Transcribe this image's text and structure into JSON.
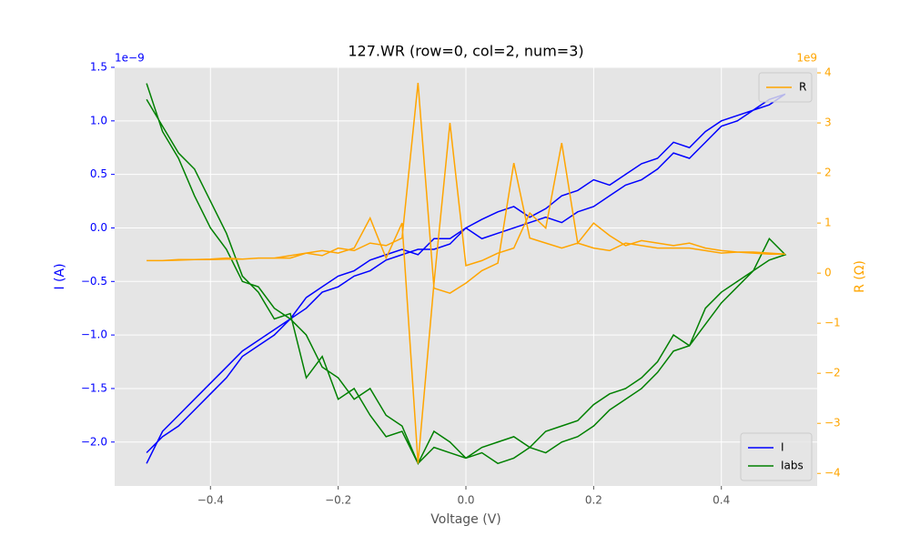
{
  "chart_data": {
    "type": "line",
    "title": "127.WR (row=0, col=2, num=3)",
    "x_label": "Voltage (V)",
    "y_label": "I (A)",
    "y2_label": "R (Ω)",
    "y_offset_text": "1e−9",
    "y2_offset_text": "1e9",
    "x": [
      -0.5,
      -0.475,
      -0.45,
      -0.425,
      -0.4,
      -0.375,
      -0.35,
      -0.325,
      -0.3,
      -0.275,
      -0.25,
      -0.225,
      -0.2,
      -0.175,
      -0.15,
      -0.125,
      -0.1,
      -0.075,
      -0.05,
      -0.025,
      0,
      0.025,
      0.05,
      0.075,
      0.1,
      0.125,
      0.15,
      0.175,
      0.2,
      0.225,
      0.25,
      0.275,
      0.3,
      0.325,
      0.35,
      0.375,
      0.4,
      0.425,
      0.45,
      0.475,
      0.5,
      0.475,
      0.45,
      0.425,
      0.4,
      0.375,
      0.35,
      0.325,
      0.3,
      0.275,
      0.25,
      0.225,
      0.2,
      0.175,
      0.15,
      0.125,
      0.1,
      0.075,
      0.05,
      0.025,
      0,
      -0.025,
      -0.05,
      -0.075,
      -0.1,
      -0.125,
      -0.15,
      -0.175,
      -0.2,
      -0.225,
      -0.25,
      -0.275,
      -0.3,
      -0.325,
      -0.35,
      -0.375,
      -0.4,
      -0.425,
      -0.45,
      -0.475,
      -0.5
    ],
    "series": [
      {
        "name": "I",
        "color": "#0000ff",
        "values": [
          -2.1,
          -1.95,
          -1.85,
          -1.7,
          -1.55,
          -1.4,
          -1.2,
          -1.1,
          -1.0,
          -0.85,
          -0.65,
          -0.55,
          -0.45,
          -0.4,
          -0.3,
          -0.25,
          -0.2,
          -0.25,
          -0.1,
          -0.1,
          0.0,
          0.08,
          0.15,
          0.2,
          0.1,
          0.18,
          0.3,
          0.35,
          0.45,
          0.4,
          0.5,
          0.6,
          0.65,
          0.8,
          0.75,
          0.9,
          1.0,
          1.05,
          1.1,
          1.2,
          1.25,
          1.15,
          1.1,
          1.0,
          0.95,
          0.8,
          0.65,
          0.7,
          0.55,
          0.45,
          0.4,
          0.3,
          0.2,
          0.15,
          0.05,
          0.1,
          0.05,
          0.0,
          -0.05,
          -0.1,
          0.0,
          -0.15,
          -0.2,
          -0.2,
          -0.25,
          -0.3,
          -0.4,
          -0.45,
          -0.55,
          -0.6,
          -0.75,
          -0.85,
          -0.95,
          -1.05,
          -1.15,
          -1.3,
          -1.45,
          -1.6,
          -1.75,
          -1.9,
          -2.2
        ]
      },
      {
        "name": "Iabs",
        "color": "#008000",
        "values": [
          1.2,
          0.95,
          0.7,
          0.55,
          0.25,
          -0.05,
          -0.45,
          -0.6,
          -0.85,
          -0.8,
          -1.4,
          -1.2,
          -1.6,
          -1.5,
          -1.75,
          -1.95,
          -1.9,
          -2.2,
          -2.05,
          -2.1,
          -2.15,
          -2.05,
          -2.0,
          -1.95,
          -2.05,
          -1.9,
          -1.85,
          -1.8,
          -1.65,
          -1.55,
          -1.5,
          -1.4,
          -1.25,
          -1.0,
          -1.1,
          -0.75,
          -0.6,
          -0.5,
          -0.4,
          -0.3,
          -0.25,
          -0.1,
          -0.4,
          -0.55,
          -0.7,
          -0.9,
          -1.1,
          -1.15,
          -1.35,
          -1.5,
          -1.6,
          -1.7,
          -1.85,
          -1.95,
          -2.0,
          -2.1,
          -2.05,
          -2.15,
          -2.2,
          -2.1,
          -2.15,
          -2.0,
          -1.9,
          -2.2,
          -1.85,
          -1.75,
          -1.5,
          -1.6,
          -1.4,
          -1.3,
          -1.0,
          -0.85,
          -0.75,
          -0.55,
          -0.5,
          -0.2,
          0.0,
          0.3,
          0.65,
          0.9,
          1.35
        ]
      },
      {
        "name": "R",
        "color": "#ffa500",
        "axis": "y2",
        "values": [
          0.25,
          0.25,
          0.27,
          0.27,
          0.28,
          0.3,
          0.28,
          0.3,
          0.3,
          0.3,
          0.4,
          0.35,
          0.5,
          0.45,
          0.6,
          0.55,
          0.7,
          3.8,
          -0.3,
          -0.4,
          -0.2,
          0.05,
          0.2,
          2.2,
          0.7,
          0.6,
          0.5,
          0.6,
          0.5,
          0.45,
          0.6,
          0.55,
          0.5,
          0.5,
          0.5,
          0.45,
          0.4,
          0.42,
          0.4,
          0.38,
          0.38,
          0.4,
          0.42,
          0.42,
          0.45,
          0.5,
          0.6,
          0.55,
          0.6,
          0.65,
          0.55,
          0.75,
          1.0,
          0.6,
          2.6,
          0.9,
          1.2,
          0.5,
          0.4,
          0.25,
          0.15,
          3.0,
          -0.2,
          -3.8,
          1.0,
          0.3,
          1.1,
          0.5,
          0.4,
          0.45,
          0.4,
          0.35,
          0.3,
          0.3,
          0.28,
          0.28,
          0.27,
          0.27,
          0.26,
          0.25,
          0.25
        ]
      }
    ],
    "xlim": [
      -0.55,
      0.55
    ],
    "xticks": [
      {
        "value": -0.4,
        "label": "−0.4"
      },
      {
        "value": -0.2,
        "label": "−0.2"
      },
      {
        "value": 0,
        "label": "0.0"
      },
      0.2,
      0.4
    ],
    "ylim": [
      -2.41,
      1.5
    ],
    "yticks": [
      {
        "value": -2,
        "label": "−2.0"
      },
      {
        "value": -1.5,
        "label": "−1.5"
      },
      {
        "value": -1,
        "label": "−1.0"
      },
      {
        "value": -0.5,
        "label": "−0.5"
      },
      {
        "value": 0,
        "label": "0.0"
      },
      0.5,
      {
        "value": 1,
        "label": "1.0"
      },
      1.5
    ],
    "y2lim": [
      -4.25,
      4.11
    ],
    "y2ticks": [
      {
        "value": -4,
        "label": "−4"
      },
      {
        "value": -3,
        "label": "−3"
      },
      {
        "value": -2,
        "label": "−2"
      },
      {
        "value": -1,
        "label": "−1"
      },
      0,
      1,
      2,
      3,
      4
    ],
    "y_color": "#0000ff",
    "y2_color": "#ffa500",
    "grid": true,
    "legend": "lower right",
    "legend2": "upper right"
  }
}
